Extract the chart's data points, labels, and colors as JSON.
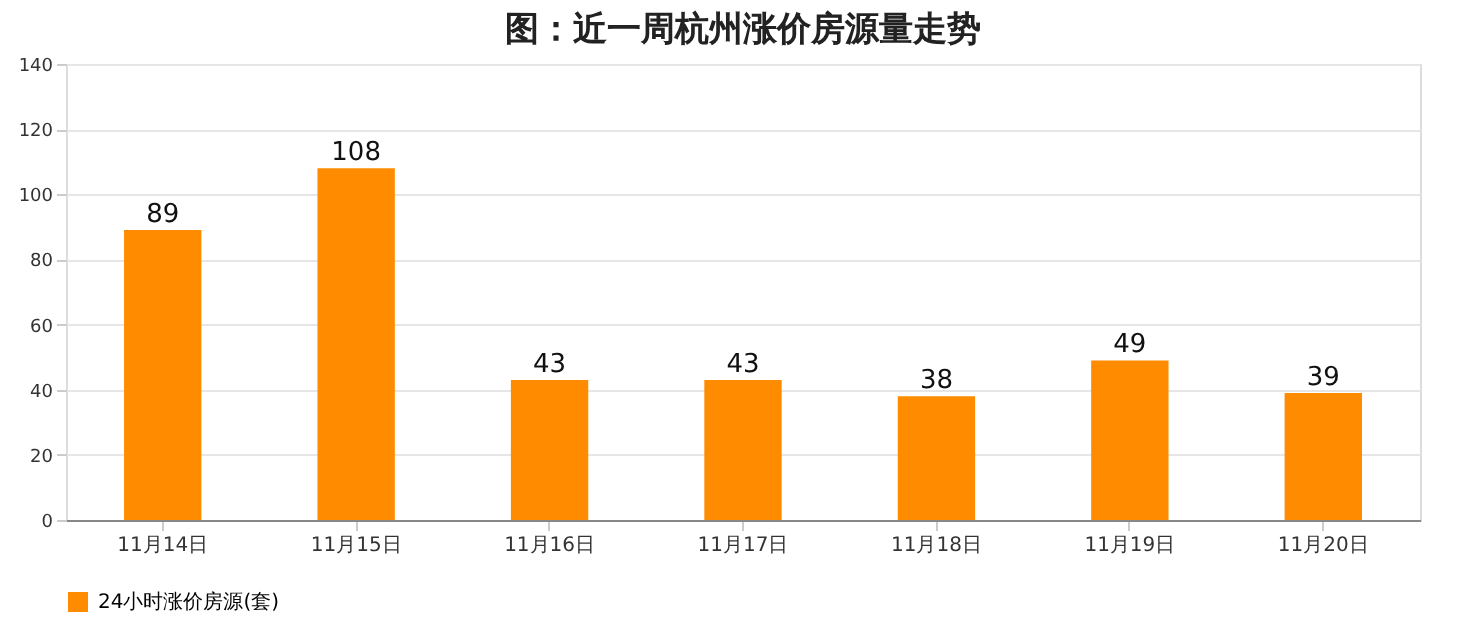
{
  "chart_data": {
    "type": "bar",
    "title": "图：近一周杭州涨价房源量走势",
    "categories": [
      "11月14日",
      "11月15日",
      "11月16日",
      "11月17日",
      "11月18日",
      "11月19日",
      "11月20日"
    ],
    "series": [
      {
        "name": "24小时涨价房源(套)",
        "color": "#ff8c00",
        "values": [
          89,
          108,
          43,
          43,
          38,
          49,
          39
        ]
      }
    ],
    "ylim": [
      0,
      140
    ],
    "yticks": [
      0,
      20,
      40,
      60,
      80,
      100,
      120,
      140
    ],
    "grid": "y",
    "legend": "bottom",
    "data_labels": true
  }
}
